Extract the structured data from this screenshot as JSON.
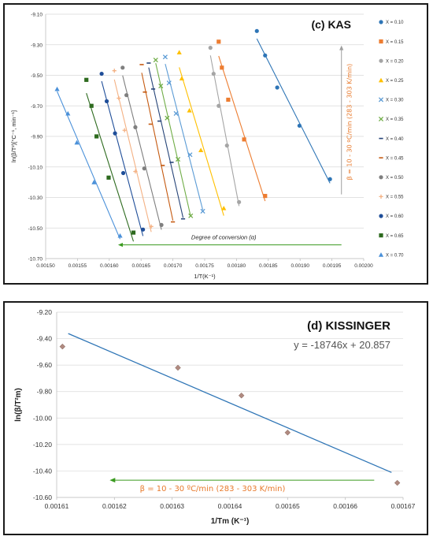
{
  "chart_data": [
    {
      "type": "scatter",
      "title": "(c) KAS",
      "xlabel": "1/T(K⁻¹)",
      "ylabel": "ln(β/T²)[°C⁻¹, min⁻¹]",
      "xlim": [
        0.0015,
        0.002
      ],
      "ylim": [
        -10.7,
        -9.1
      ],
      "x_ticks": [
        "0.00150",
        "0.00155",
        "0.00160",
        "0.00165",
        "0.00170",
        "0.00175",
        "0.00180",
        "0.00185",
        "0.00190",
        "0.00195",
        "0.00200"
      ],
      "y_ticks": [
        "-9.10",
        "-9.30",
        "-9.50",
        "-9.70",
        "-9.90",
        "-10.10",
        "-10.30",
        "-10.50",
        "-10.70"
      ],
      "grid": "horizontal",
      "legend_position": "right",
      "annotations": {
        "conversion": "Degree of conversion (α)",
        "heating_rate": "β = 10 - 30 ºC/min (283 - 303 K/min)"
      },
      "series": [
        {
          "name": "X = 0.10",
          "color": "#2E75B6",
          "marker": "circle",
          "points": [
            [
              0.001832,
              -9.21
            ],
            [
              0.001845,
              -9.37
            ],
            [
              0.001864,
              -9.58
            ],
            [
              0.001899,
              -9.83
            ],
            [
              0.001947,
              -10.18
            ]
          ]
        },
        {
          "name": "X = 0.15",
          "color": "#ED7D31",
          "marker": "square",
          "points": [
            [
              0.001772,
              -9.28
            ],
            [
              0.001777,
              -9.45
            ],
            [
              0.001787,
              -9.66
            ],
            [
              0.001812,
              -9.92
            ],
            [
              0.001845,
              -10.29
            ]
          ]
        },
        {
          "name": "X = 0.20",
          "color": "#A5A5A5",
          "marker": "circle",
          "points": [
            [
              0.001759,
              -9.32
            ],
            [
              0.001764,
              -9.49
            ],
            [
              0.001772,
              -9.7
            ],
            [
              0.001785,
              -9.96
            ],
            [
              0.001804,
              -10.33
            ]
          ]
        },
        {
          "name": "X = 0.25",
          "color": "#FFC000",
          "marker": "triangle",
          "points": [
            [
              0.00171,
              -9.35
            ],
            [
              0.001714,
              -9.52
            ],
            [
              0.001726,
              -9.73
            ],
            [
              0.001744,
              -9.99
            ],
            [
              0.00178,
              -10.37
            ]
          ]
        },
        {
          "name": "X = 0.30",
          "color": "#5B9BD5",
          "marker": "x",
          "points": [
            [
              0.001688,
              -9.38
            ],
            [
              0.001694,
              -9.55
            ],
            [
              0.001705,
              -9.75
            ],
            [
              0.001727,
              -10.02
            ],
            [
              0.001747,
              -10.39
            ]
          ]
        },
        {
          "name": "X = 0.35",
          "color": "#70AD47",
          "marker": "x",
          "points": [
            [
              0.001673,
              -9.4
            ],
            [
              0.001681,
              -9.57
            ],
            [
              0.001691,
              -9.78
            ],
            [
              0.001708,
              -10.05
            ],
            [
              0.001728,
              -10.42
            ]
          ]
        },
        {
          "name": "X = 0.40",
          "color": "#264478",
          "marker": "dash",
          "points": [
            [
              0.001662,
              -9.42
            ],
            [
              0.001669,
              -9.59
            ],
            [
              0.001679,
              -9.8
            ],
            [
              0.001698,
              -10.07
            ],
            [
              0.001716,
              -10.44
            ]
          ]
        },
        {
          "name": "X = 0.45",
          "color": "#C55A11",
          "marker": "dash",
          "points": [
            [
              0.001651,
              -9.43
            ],
            [
              0.001656,
              -9.61
            ],
            [
              0.001665,
              -9.82
            ],
            [
              0.001684,
              -10.09
            ],
            [
              0.0017,
              -10.46
            ]
          ]
        },
        {
          "name": "X = 0.50",
          "color": "#7F7F7F",
          "marker": "circle",
          "points": [
            [
              0.001621,
              -9.45
            ],
            [
              0.001627,
              -9.63
            ],
            [
              0.001641,
              -9.84
            ],
            [
              0.001655,
              -10.11
            ],
            [
              0.001682,
              -10.48
            ]
          ]
        },
        {
          "name": "X = 0.55",
          "color": "#F4B183",
          "marker": "plus",
          "points": [
            [
              0.001608,
              -9.47
            ],
            [
              0.001615,
              -9.65
            ],
            [
              0.001624,
              -9.86
            ],
            [
              0.001641,
              -10.13
            ],
            [
              0.001666,
              -10.49
            ]
          ]
        },
        {
          "name": "X = 0.60",
          "color": "#1F4E99",
          "marker": "circle",
          "points": [
            [
              0.001588,
              -9.49
            ],
            [
              0.001596,
              -9.67
            ],
            [
              0.001609,
              -9.88
            ],
            [
              0.001622,
              -10.14
            ],
            [
              0.001653,
              -10.51
            ]
          ]
        },
        {
          "name": "X = 0.65",
          "color": "#2D6A1E",
          "marker": "square",
          "points": [
            [
              0.001564,
              -9.53
            ],
            [
              0.001572,
              -9.7
            ],
            [
              0.00158,
              -9.9
            ],
            [
              0.001599,
              -10.17
            ],
            [
              0.001638,
              -10.53
            ]
          ]
        },
        {
          "name": "X = 0.70",
          "color": "#4A90D9",
          "marker": "triangle",
          "points": [
            [
              0.001518,
              -9.59
            ],
            [
              0.001535,
              -9.75
            ],
            [
              0.001549,
              -9.94
            ],
            [
              0.001576,
              -10.2
            ],
            [
              0.001617,
              -10.55
            ]
          ]
        }
      ]
    },
    {
      "type": "scatter",
      "title": "(d) KISSINGER",
      "equation": "y = -18746x + 20.857",
      "xlabel": "1/Tm (K⁻¹)",
      "ylabel": "ln(β/T²m)",
      "xlim": [
        0.00161,
        0.00167
      ],
      "ylim": [
        -10.6,
        -9.2
      ],
      "x_ticks": [
        "0.00161",
        "0.00162",
        "0.00163",
        "0.00164",
        "0.00165",
        "0.00166",
        "0.00167"
      ],
      "y_ticks": [
        "-9.20",
        "-9.40",
        "-9.60",
        "-9.80",
        "-10.00",
        "-10.20",
        "-10.40",
        "-10.60"
      ],
      "grid": "horizontal",
      "annotation": "β = 10 - 30 ºC/min (283 - 303 K/min)",
      "trendline": {
        "slope": -18746,
        "intercept": 20.857,
        "x_range": [
          0.001612,
          0.001668
        ]
      },
      "points": [
        [
          0.001611,
          -9.46
        ],
        [
          0.001631,
          -9.62
        ],
        [
          0.001642,
          -9.83
        ],
        [
          0.00165,
          -10.11
        ],
        [
          0.001669,
          -10.49
        ]
      ]
    }
  ]
}
